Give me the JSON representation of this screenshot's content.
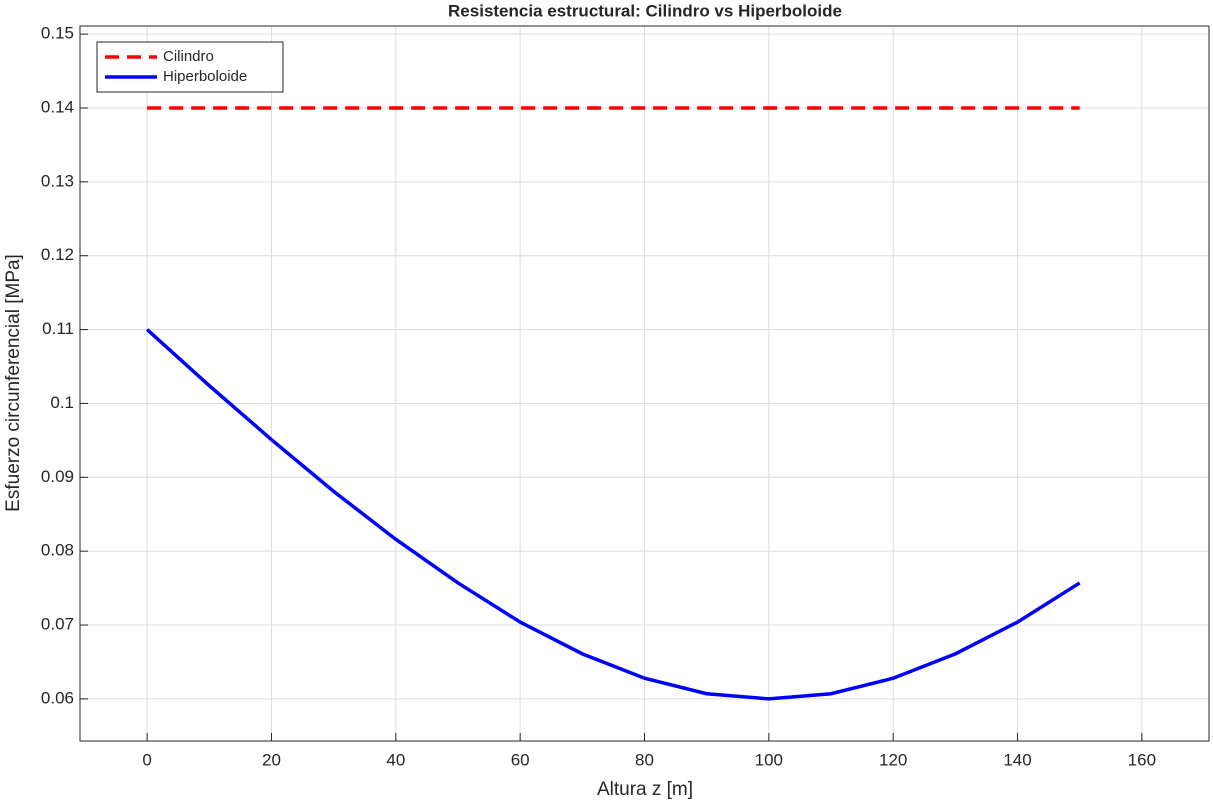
{
  "chart_data": {
    "type": "line",
    "title": "Resistencia estructural: Cilindro vs Hiperboloide",
    "xlabel": "Altura z [m]",
    "ylabel": "Esfuerzo circunferencial [MPa]",
    "x": [
      0,
      10,
      20,
      30,
      40,
      50,
      60,
      70,
      80,
      90,
      100,
      110,
      120,
      130,
      140,
      150
    ],
    "series": [
      {
        "name": "Cilindro",
        "color": "#ff0000",
        "line_style": "dashed",
        "values": [
          0.14,
          0.14,
          0.14,
          0.14,
          0.14,
          0.14,
          0.14,
          0.14,
          0.14,
          0.14,
          0.14,
          0.14,
          0.14,
          0.14,
          0.14,
          0.14
        ]
      },
      {
        "name": "Hiperboloide",
        "color": "#0000ff",
        "line_style": "solid",
        "values": [
          0.11,
          0.1024,
          0.0951,
          0.0881,
          0.0816,
          0.0757,
          0.0704,
          0.0661,
          0.0628,
          0.0607,
          0.06,
          0.0607,
          0.0628,
          0.0661,
          0.0704,
          0.0757
        ]
      }
    ],
    "xlim": [
      -10.8,
      170.8
    ],
    "xticks": [
      0,
      20,
      40,
      60,
      80,
      100,
      120,
      140,
      160
    ],
    "ylim": [
      0.0543,
      0.1511
    ],
    "yticks": [
      0.06,
      0.07,
      0.08,
      0.09,
      0.1,
      0.11,
      0.12,
      0.13,
      0.14,
      0.15
    ],
    "grid": true,
    "legend": "upper-left"
  }
}
